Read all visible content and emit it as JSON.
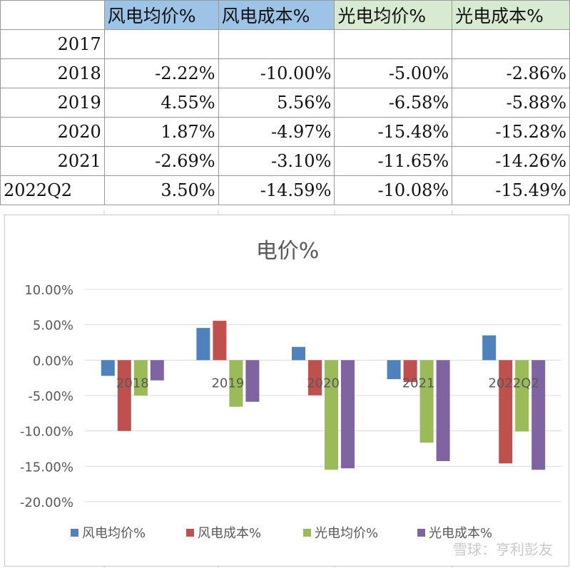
{
  "table": {
    "headers": [
      "",
      "风电均价%",
      "风电成本%",
      "光电均价%",
      "光电成本%"
    ],
    "rows": [
      {
        "label": "2017",
        "cells": [
          "",
          "",
          "",
          ""
        ]
      },
      {
        "label": "2018",
        "cells": [
          "-2.22%",
          "-10.00%",
          "-5.00%",
          "-2.86%"
        ]
      },
      {
        "label": "2019",
        "cells": [
          "4.55%",
          "5.56%",
          "-6.58%",
          "-5.88%"
        ]
      },
      {
        "label": "2020",
        "cells": [
          "1.87%",
          "-4.97%",
          "-15.48%",
          "-15.28%"
        ]
      },
      {
        "label": "2021",
        "cells": [
          "-2.69%",
          "-3.10%",
          "-11.65%",
          "-14.26%"
        ]
      },
      {
        "label": "2022Q2",
        "cells": [
          "3.50%",
          "-14.59%",
          "-10.08%",
          "-15.49%"
        ]
      }
    ]
  },
  "chart_data": {
    "type": "bar",
    "title": "电价%",
    "categories": [
      "2018",
      "2019",
      "2020",
      "2021",
      "2022Q2"
    ],
    "series": [
      {
        "name": "风电均价%",
        "color": "#4f81bd",
        "values": [
          -2.22,
          4.55,
          1.87,
          -2.69,
          3.5
        ]
      },
      {
        "name": "风电成本%",
        "color": "#c0504d",
        "values": [
          -10.0,
          5.56,
          -4.97,
          -3.1,
          -14.59
        ]
      },
      {
        "name": "光电均价%",
        "color": "#9bbb59",
        "values": [
          -5.0,
          -6.58,
          -15.48,
          -11.65,
          -10.08
        ]
      },
      {
        "name": "光电成本%",
        "color": "#8064a2",
        "values": [
          -2.86,
          -5.88,
          -15.28,
          -14.26,
          -15.49
        ]
      }
    ],
    "ylim": [
      -20,
      10
    ],
    "yticks": [
      "10.00%",
      "5.00%",
      "0.00%",
      "-5.00%",
      "-10.00%",
      "-15.00%",
      "-20.00%"
    ],
    "ytick_values": [
      10,
      5,
      0,
      -5,
      -10,
      -15,
      -20
    ],
    "grid": true,
    "legend": "bottom"
  },
  "watermark": "雪球：亨利彭友"
}
